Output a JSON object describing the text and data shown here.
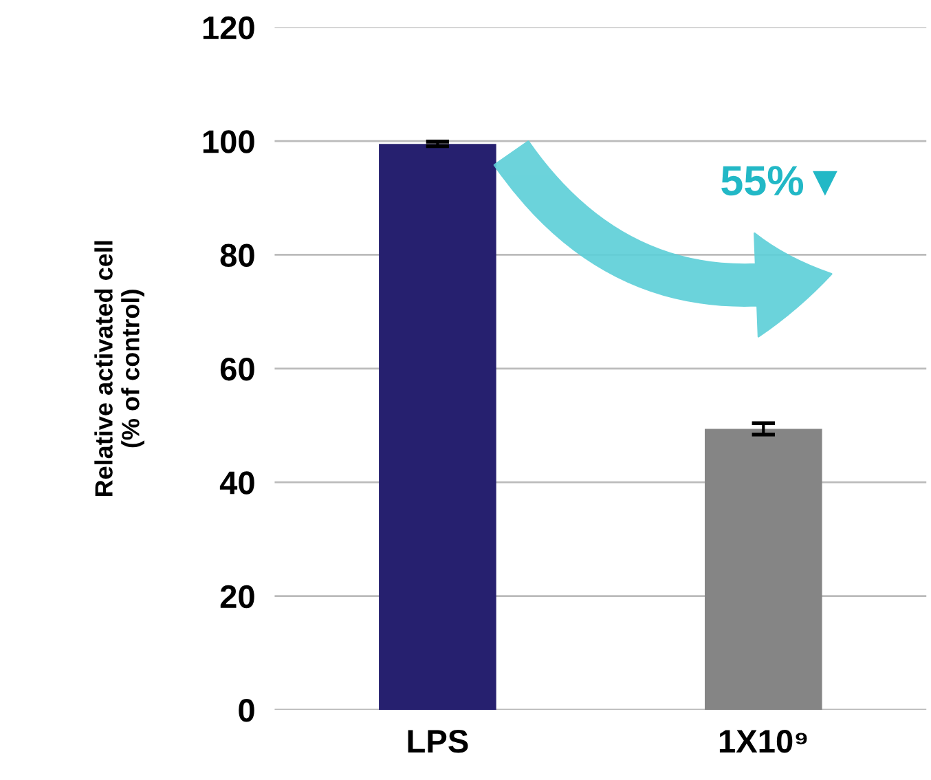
{
  "chart_data": {
    "type": "bar",
    "categories": [
      "LPS",
      "1X10⁹"
    ],
    "values": [
      99.5,
      49.4
    ],
    "errors": [
      0.4,
      1.0
    ],
    "colors": [
      "#26206f",
      "#858585"
    ],
    "ylabel": "Relative activated cell\n(% of control)",
    "annotations": [
      "55%▼"
    ],
    "ylim": [
      0,
      120
    ],
    "yticks": [
      0,
      20,
      40,
      60,
      80,
      100,
      120
    ],
    "grid": "y"
  }
}
